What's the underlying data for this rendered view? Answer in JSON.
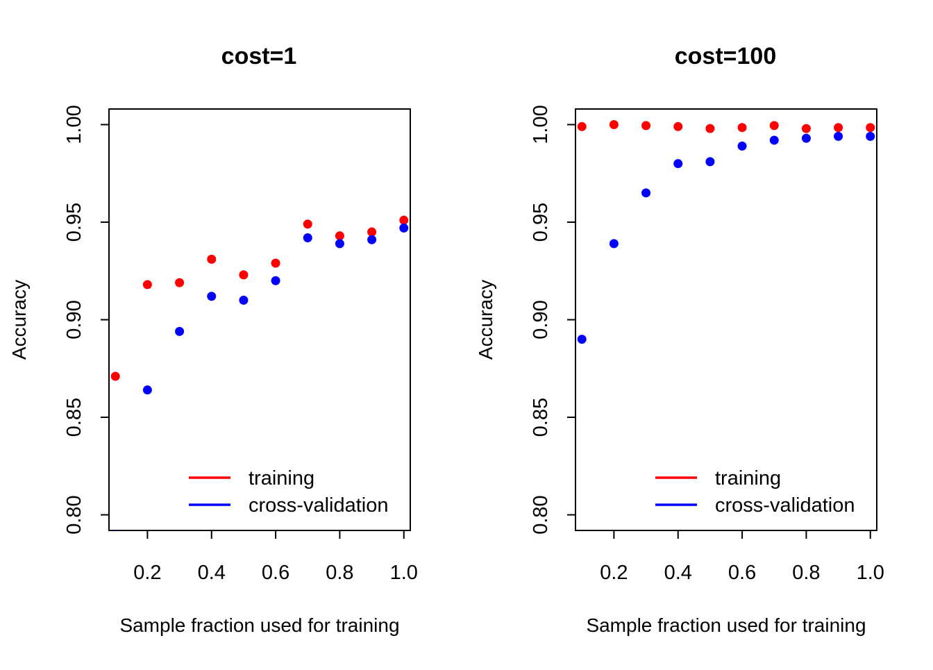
{
  "chart_data": [
    {
      "type": "scatter",
      "title": "cost=1",
      "xlabel": "Sample fraction used for training",
      "ylabel": "Accuracy",
      "xlim": [
        0.08,
        1.02
      ],
      "ylim": [
        0.792,
        1.008
      ],
      "xticks": [
        0.2,
        0.4,
        0.6,
        0.8,
        1.0
      ],
      "xtick_labels": [
        "0.2",
        "0.4",
        "0.6",
        "0.8",
        "1.0"
      ],
      "yticks": [
        0.8,
        0.85,
        0.9,
        0.95,
        1.0
      ],
      "ytick_labels": [
        "0.80",
        "0.85",
        "0.90",
        "0.95",
        "1.00"
      ],
      "grid": false,
      "legend_position": "bottom-right",
      "series": [
        {
          "name": "training",
          "color": "#ff0000",
          "x": [
            0.1,
            0.2,
            0.3,
            0.4,
            0.5,
            0.6,
            0.7,
            0.8,
            0.9,
            1.0
          ],
          "y": [
            0.871,
            0.918,
            0.919,
            0.931,
            0.923,
            0.929,
            0.949,
            0.943,
            0.945,
            0.951
          ]
        },
        {
          "name": "cross-validation",
          "color": "#0000ff",
          "x": [
            0.1,
            0.2,
            0.3,
            0.4,
            0.5,
            0.6,
            0.7,
            0.8,
            0.9,
            1.0
          ],
          "y": [
            0.79,
            0.864,
            0.894,
            0.912,
            0.91,
            0.92,
            0.942,
            0.939,
            0.941,
            0.947
          ]
        }
      ]
    },
    {
      "type": "scatter",
      "title": "cost=100",
      "xlabel": "Sample fraction used for training",
      "ylabel": "Accuracy",
      "xlim": [
        0.08,
        1.02
      ],
      "ylim": [
        0.792,
        1.008
      ],
      "xticks": [
        0.2,
        0.4,
        0.6,
        0.8,
        1.0
      ],
      "xtick_labels": [
        "0.2",
        "0.4",
        "0.6",
        "0.8",
        "1.0"
      ],
      "yticks": [
        0.8,
        0.85,
        0.9,
        0.95,
        1.0
      ],
      "ytick_labels": [
        "0.80",
        "0.85",
        "0.90",
        "0.95",
        "1.00"
      ],
      "grid": false,
      "legend_position": "bottom-right",
      "series": [
        {
          "name": "training",
          "color": "#ff0000",
          "x": [
            0.1,
            0.2,
            0.3,
            0.4,
            0.5,
            0.6,
            0.7,
            0.8,
            0.9,
            1.0
          ],
          "y": [
            0.999,
            1.0,
            0.9995,
            0.999,
            0.998,
            0.9985,
            0.9995,
            0.998,
            0.9985,
            0.9985
          ]
        },
        {
          "name": "cross-validation",
          "color": "#0000ff",
          "x": [
            0.1,
            0.2,
            0.3,
            0.4,
            0.5,
            0.6,
            0.7,
            0.8,
            0.9,
            1.0
          ],
          "y": [
            0.89,
            0.939,
            0.965,
            0.98,
            0.981,
            0.989,
            0.992,
            0.993,
            0.994,
            0.994
          ]
        }
      ]
    }
  ]
}
